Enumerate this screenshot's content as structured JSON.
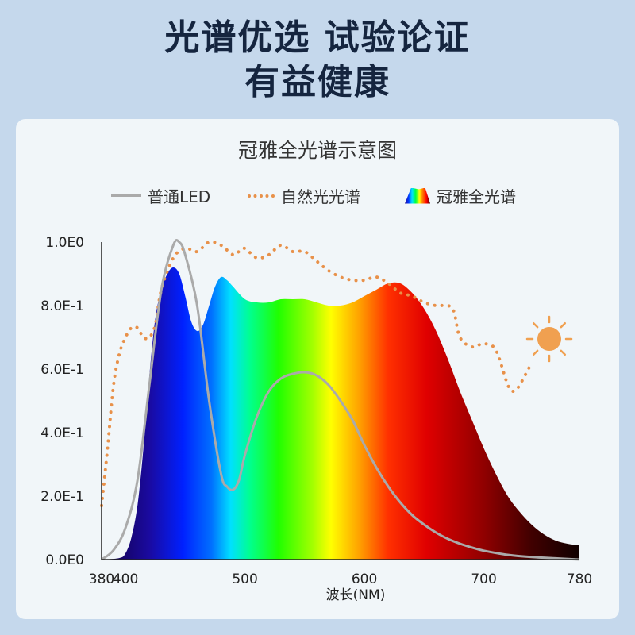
{
  "hero": {
    "line1": "光谱优选 试验论证",
    "line2": "有益健康"
  },
  "chart_data": {
    "type": "line",
    "title": "冠雅全光谱示意图",
    "xlabel": "波长(NM)",
    "ylabel": "",
    "x_ticks": [
      {
        "value": 380,
        "label": "380"
      },
      {
        "value": 400,
        "label": "400"
      },
      {
        "value": 500,
        "label": "500"
      },
      {
        "value": 600,
        "label": "600"
      },
      {
        "value": 700,
        "label": "700"
      },
      {
        "value": 780,
        "label": "780"
      }
    ],
    "y_ticks": [
      {
        "value": 0.0,
        "label": "0.0E0"
      },
      {
        "value": 0.2,
        "label": "2.0E-1"
      },
      {
        "value": 0.4,
        "label": "4.0E-1"
      },
      {
        "value": 0.6,
        "label": "6.0E-1"
      },
      {
        "value": 0.8,
        "label": "8.0E-1"
      },
      {
        "value": 1.0,
        "label": "1.0E0"
      }
    ],
    "ylim": [
      0,
      1.0
    ],
    "legend_placement": "top",
    "series": [
      {
        "name": "普通LED",
        "style": "solid",
        "color": "#aaaaaa",
        "points": [
          [
            380,
            0
          ],
          [
            390,
            0.03
          ],
          [
            400,
            0.1
          ],
          [
            410,
            0.25
          ],
          [
            420,
            0.55
          ],
          [
            430,
            0.85
          ],
          [
            440,
            0.99
          ],
          [
            445,
            1.0
          ],
          [
            450,
            0.96
          ],
          [
            460,
            0.8
          ],
          [
            470,
            0.5
          ],
          [
            480,
            0.27
          ],
          [
            485,
            0.23
          ],
          [
            490,
            0.22
          ],
          [
            495,
            0.25
          ],
          [
            500,
            0.33
          ],
          [
            510,
            0.45
          ],
          [
            520,
            0.53
          ],
          [
            530,
            0.57
          ],
          [
            540,
            0.585
          ],
          [
            550,
            0.59
          ],
          [
            560,
            0.58
          ],
          [
            570,
            0.55
          ],
          [
            580,
            0.5
          ],
          [
            590,
            0.44
          ],
          [
            600,
            0.36
          ],
          [
            610,
            0.29
          ],
          [
            620,
            0.23
          ],
          [
            630,
            0.18
          ],
          [
            640,
            0.14
          ],
          [
            650,
            0.11
          ],
          [
            660,
            0.085
          ],
          [
            670,
            0.065
          ],
          [
            680,
            0.05
          ],
          [
            690,
            0.038
          ],
          [
            700,
            0.028
          ],
          [
            720,
            0.015
          ],
          [
            740,
            0.008
          ],
          [
            760,
            0.004
          ],
          [
            780,
            0
          ]
        ]
      },
      {
        "name": "自然光光谱",
        "style": "dotted",
        "color": "#e8914a",
        "points": [
          [
            380,
            0.17
          ],
          [
            385,
            0.35
          ],
          [
            390,
            0.55
          ],
          [
            395,
            0.65
          ],
          [
            400,
            0.7
          ],
          [
            405,
            0.73
          ],
          [
            410,
            0.73
          ],
          [
            415,
            0.7
          ],
          [
            420,
            0.7
          ],
          [
            425,
            0.74
          ],
          [
            430,
            0.85
          ],
          [
            440,
            0.95
          ],
          [
            450,
            0.98
          ],
          [
            460,
            0.97
          ],
          [
            470,
            1.0
          ],
          [
            480,
            0.99
          ],
          [
            490,
            0.96
          ],
          [
            495,
            0.97
          ],
          [
            500,
            0.98
          ],
          [
            510,
            0.95
          ],
          [
            520,
            0.96
          ],
          [
            530,
            0.99
          ],
          [
            540,
            0.97
          ],
          [
            550,
            0.97
          ],
          [
            560,
            0.94
          ],
          [
            570,
            0.91
          ],
          [
            580,
            0.89
          ],
          [
            590,
            0.88
          ],
          [
            600,
            0.88
          ],
          [
            610,
            0.89
          ],
          [
            620,
            0.87
          ],
          [
            630,
            0.84
          ],
          [
            640,
            0.83
          ],
          [
            650,
            0.81
          ],
          [
            660,
            0.8
          ],
          [
            670,
            0.8
          ],
          [
            675,
            0.78
          ],
          [
            680,
            0.7
          ],
          [
            690,
            0.67
          ],
          [
            700,
            0.68
          ],
          [
            710,
            0.66
          ],
          [
            720,
            0.55
          ],
          [
            725,
            0.53
          ],
          [
            730,
            0.55
          ],
          [
            740,
            0.62
          ]
        ]
      },
      {
        "name": "冠雅全光谱",
        "style": "spectrum-fill",
        "points": [
          [
            380,
            0
          ],
          [
            395,
            0.005
          ],
          [
            400,
            0.02
          ],
          [
            405,
            0.07
          ],
          [
            410,
            0.17
          ],
          [
            415,
            0.35
          ],
          [
            420,
            0.58
          ],
          [
            425,
            0.76
          ],
          [
            430,
            0.85
          ],
          [
            435,
            0.9
          ],
          [
            440,
            0.92
          ],
          [
            445,
            0.9
          ],
          [
            450,
            0.83
          ],
          [
            455,
            0.75
          ],
          [
            460,
            0.72
          ],
          [
            465,
            0.74
          ],
          [
            470,
            0.8
          ],
          [
            475,
            0.86
          ],
          [
            480,
            0.89
          ],
          [
            485,
            0.88
          ],
          [
            490,
            0.86
          ],
          [
            500,
            0.82
          ],
          [
            510,
            0.81
          ],
          [
            520,
            0.81
          ],
          [
            530,
            0.82
          ],
          [
            540,
            0.82
          ],
          [
            550,
            0.82
          ],
          [
            560,
            0.81
          ],
          [
            570,
            0.8
          ],
          [
            580,
            0.8
          ],
          [
            590,
            0.81
          ],
          [
            600,
            0.83
          ],
          [
            610,
            0.85
          ],
          [
            620,
            0.87
          ],
          [
            630,
            0.87
          ],
          [
            640,
            0.84
          ],
          [
            650,
            0.79
          ],
          [
            660,
            0.72
          ],
          [
            670,
            0.63
          ],
          [
            680,
            0.53
          ],
          [
            690,
            0.44
          ],
          [
            700,
            0.35
          ],
          [
            710,
            0.27
          ],
          [
            720,
            0.2
          ],
          [
            730,
            0.15
          ],
          [
            740,
            0.11
          ],
          [
            750,
            0.08
          ],
          [
            760,
            0.06
          ],
          [
            770,
            0.05
          ],
          [
            780,
            0.045
          ]
        ]
      }
    ]
  },
  "colors": {
    "sun": "#f0a050",
    "axis": "#222222"
  },
  "icons": {
    "sun": "sun-icon",
    "spectrum": "spectrum-swatch-icon"
  }
}
